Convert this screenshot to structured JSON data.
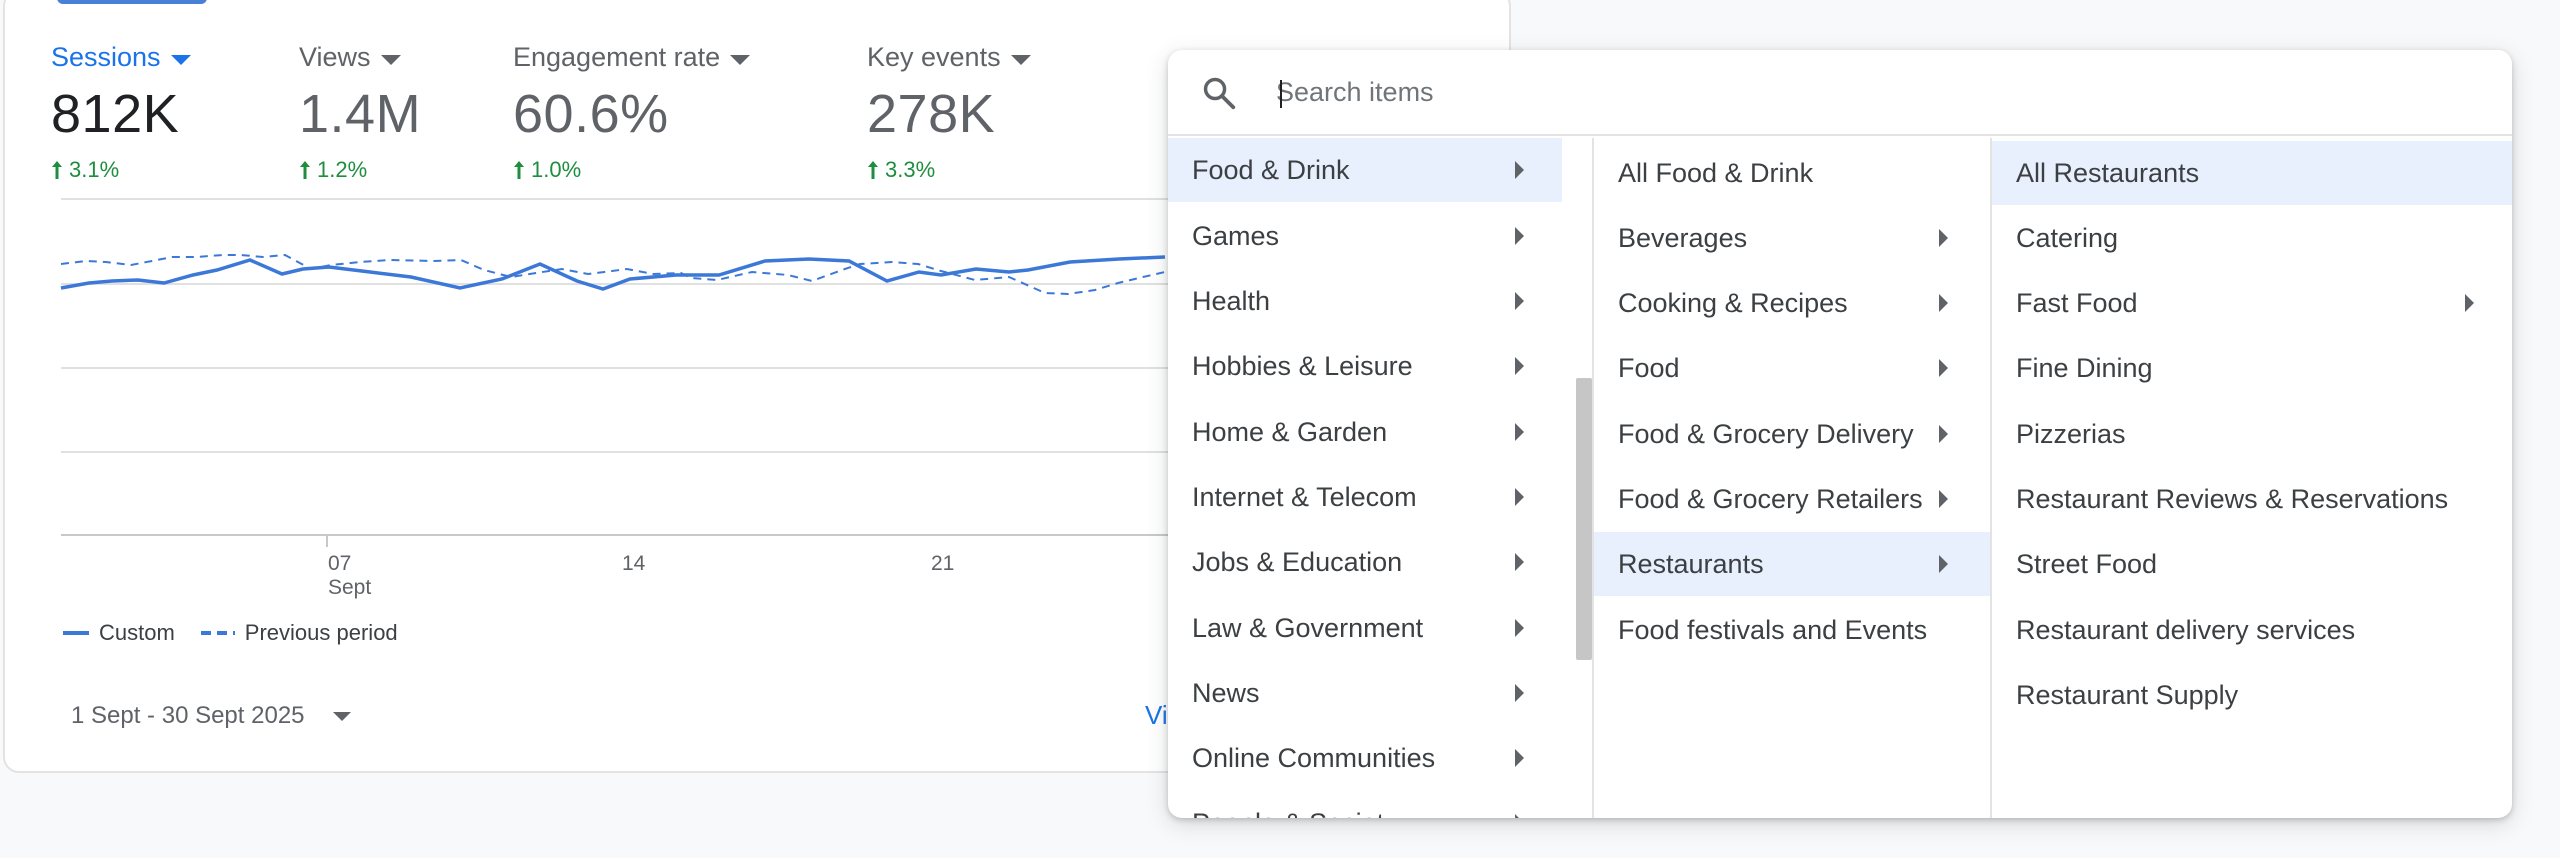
{
  "metrics": [
    {
      "label": "Sessions",
      "value": "812K",
      "change": "3.1%",
      "active": true
    },
    {
      "label": "Views",
      "value": "1.4M",
      "change": "1.2%",
      "active": false
    },
    {
      "label": "Engagement rate",
      "value": "60.6%",
      "change": "1.0%",
      "active": false
    },
    {
      "label": "Key events",
      "value": "278K",
      "change": "3.3%",
      "active": false
    }
  ],
  "chart": {
    "x_ticks": [
      "07",
      "14",
      "21"
    ],
    "x_month": "Sept",
    "legend": {
      "current": "Custom",
      "previous": "Previous period"
    },
    "colors": {
      "current": "#3c78d8",
      "previous": "#3c78d8",
      "grid": "#e0e0e0"
    }
  },
  "footer": {
    "date_range": "1 Sept - 30 Sept 2025",
    "view_link": "Vi"
  },
  "picker": {
    "search_placeholder": "Search items",
    "col1": [
      {
        "label": "Food & Drink",
        "has_children": true,
        "selected": true
      },
      {
        "label": "Games",
        "has_children": true
      },
      {
        "label": "Health",
        "has_children": true
      },
      {
        "label": "Hobbies & Leisure",
        "has_children": true
      },
      {
        "label": "Home & Garden",
        "has_children": true
      },
      {
        "label": "Internet & Telecom",
        "has_children": true
      },
      {
        "label": "Jobs & Education",
        "has_children": true
      },
      {
        "label": "Law & Government",
        "has_children": true
      },
      {
        "label": "News",
        "has_children": true
      },
      {
        "label": "Online Communities",
        "has_children": true
      },
      {
        "label": "People & Society",
        "has_children": true
      }
    ],
    "col2": [
      {
        "label": "All Food & Drink",
        "has_children": false
      },
      {
        "label": "Beverages",
        "has_children": true
      },
      {
        "label": "Cooking & Recipes",
        "has_children": true
      },
      {
        "label": "Food",
        "has_children": true
      },
      {
        "label": "Food & Grocery Delivery",
        "has_children": true
      },
      {
        "label": "Food & Grocery Retailers",
        "has_children": true
      },
      {
        "label": "Restaurants",
        "has_children": true,
        "selected": true
      },
      {
        "label": "Food festivals and Events",
        "has_children": false
      }
    ],
    "col3": [
      {
        "label": "All Restaurants",
        "has_children": false,
        "selected": true
      },
      {
        "label": "Catering",
        "has_children": false
      },
      {
        "label": "Fast Food",
        "has_children": true
      },
      {
        "label": "Fine Dining",
        "has_children": false
      },
      {
        "label": "Pizzerias",
        "has_children": false
      },
      {
        "label": "Restaurant Reviews & Reservations",
        "has_children": false
      },
      {
        "label": "Street Food",
        "has_children": false
      },
      {
        "label": "Restaurant delivery services",
        "has_children": false
      },
      {
        "label": "Restaurant Supply",
        "has_children": false
      }
    ]
  }
}
